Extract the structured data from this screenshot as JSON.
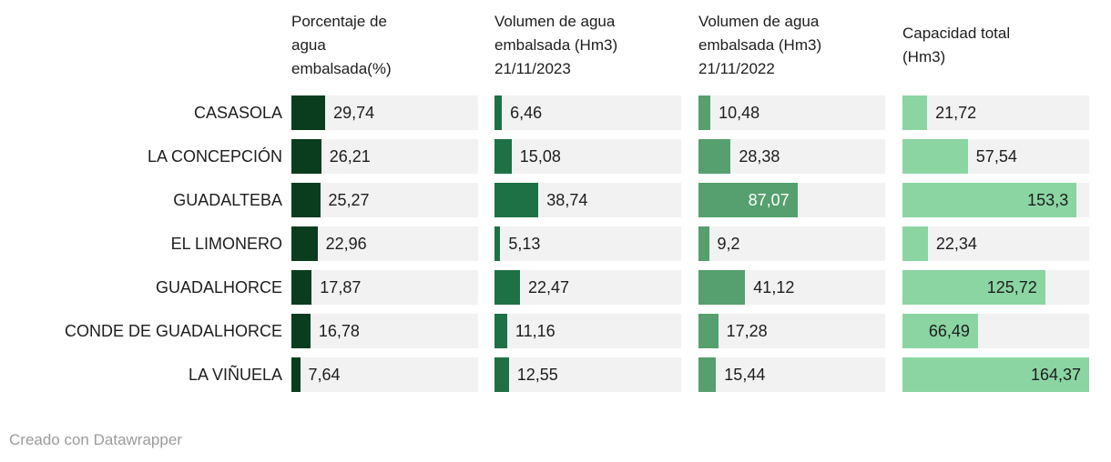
{
  "chart_data": {
    "type": "bar",
    "layout_note": "bar table, one shared linear scale across all four bar columns",
    "scale_max": 164.37,
    "decimal_separator": ",",
    "columns": [
      {
        "header": "Porcentaje de\nagua\nembalsada(%)",
        "color": "#0a3c1e",
        "inside_label_color": "#ffffff"
      },
      {
        "header": "Volumen de agua\nembalsada (Hm3)\n21/11/2023",
        "color": "#1e7145",
        "inside_label_color": "#ffffff"
      },
      {
        "header": "Volumen de agua\nembalsada (Hm3)\n21/11/2022",
        "color": "#55a06e",
        "inside_label_color": "#ffffff"
      },
      {
        "header": "Capacidad total\n(Hm3)",
        "color": "#8bd5a3",
        "inside_label_color": "#1d1d1d"
      }
    ],
    "rows": [
      {
        "label": "CASASOLA",
        "values": [
          29.74,
          6.46,
          10.48,
          21.72
        ],
        "display": [
          "29,74",
          "6,46",
          "10,48",
          "21,72"
        ]
      },
      {
        "label": "LA CONCEPCIÓN",
        "values": [
          26.21,
          15.08,
          28.38,
          57.54
        ],
        "display": [
          "26,21",
          "15,08",
          "28,38",
          "57,54"
        ]
      },
      {
        "label": "GUADALTEBA",
        "values": [
          25.27,
          38.74,
          87.07,
          153.3
        ],
        "display": [
          "25,27",
          "38,74",
          "87,07",
          "153,3"
        ]
      },
      {
        "label": "EL LIMONERO",
        "values": [
          22.96,
          5.13,
          9.2,
          22.34
        ],
        "display": [
          "22,96",
          "5,13",
          "9,2",
          "22,34"
        ]
      },
      {
        "label": "GUADALHORCE",
        "values": [
          17.87,
          22.47,
          41.12,
          125.72
        ],
        "display": [
          "17,87",
          "22,47",
          "41,12",
          "125,72"
        ]
      },
      {
        "label": "CONDE DE GUADALHORCE",
        "values": [
          16.78,
          11.16,
          17.28,
          66.49
        ],
        "display": [
          "16,78",
          "11,16",
          "17,28",
          "66,49"
        ]
      },
      {
        "label": "LA VIÑUELA",
        "values": [
          7.64,
          12.55,
          15.44,
          164.37
        ],
        "display": [
          "7,64",
          "12,55",
          "15,44",
          "164,37"
        ]
      }
    ]
  },
  "colors": {
    "track": "#f2f2f2",
    "text": "#1d1d1d",
    "footer_text": "#9b9b9b"
  },
  "footer": {
    "credit": "Creado con Datawrapper"
  }
}
